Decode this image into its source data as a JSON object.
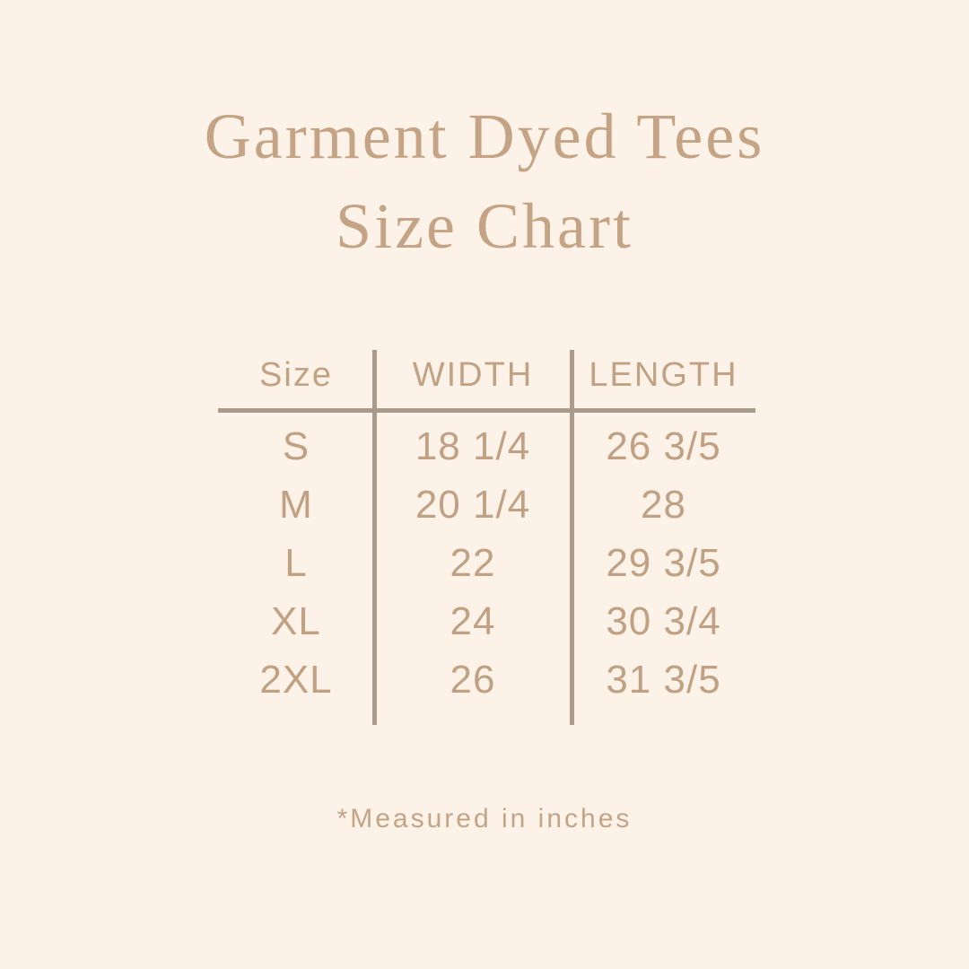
{
  "header": {
    "title_line1": "Garment Dyed Tees",
    "title_line2": "Size Chart"
  },
  "table": {
    "headers": [
      "Size",
      "WIDTH",
      "LENGTH"
    ],
    "rows": [
      {
        "size": "S",
        "width": "18 1/4",
        "length": "26 3/5"
      },
      {
        "size": "M",
        "width": "20 1/4",
        "length": "28"
      },
      {
        "size": "L",
        "width": "22",
        "length": "29 3/5"
      },
      {
        "size": "XL",
        "width": "24",
        "length": "30 3/4"
      },
      {
        "size": "2XL",
        "width": "26",
        "length": "31 3/5"
      }
    ]
  },
  "footnote": {
    "text": "*Measured in inches"
  },
  "colors": {
    "background": "#fdf2e8",
    "title_text": "#c5a385",
    "table_text": "#c0a183",
    "rule_line": "#a89a8d"
  }
}
